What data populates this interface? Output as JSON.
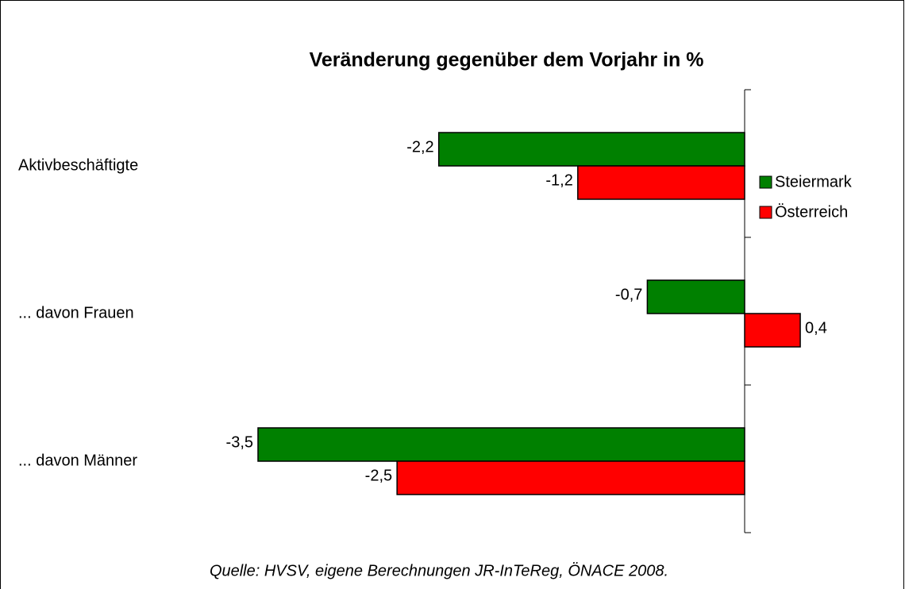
{
  "chart_data": {
    "type": "hbar",
    "title": "Veränderung gegenüber dem Vorjahr in %",
    "source": "Quelle: HVSV, eigene Berechnungen JR-InTeReg, ÖNACE 2008.",
    "categories": [
      "Aktivbeschäftigte",
      "... davon Frauen",
      "... davon Männer"
    ],
    "series": [
      {
        "name": "Steiermark",
        "color": "#008000",
        "values": [
          -2.2,
          -0.7,
          -3.5
        ],
        "value_labels": [
          "-2,2",
          "-0,7",
          "-3,5"
        ]
      },
      {
        "name": "Österreich",
        "color": "#ff0000",
        "values": [
          -1.2,
          0.4,
          -2.5
        ],
        "value_labels": [
          "-1,2",
          "0,4",
          "-2,5"
        ]
      }
    ],
    "legend": "right"
  }
}
